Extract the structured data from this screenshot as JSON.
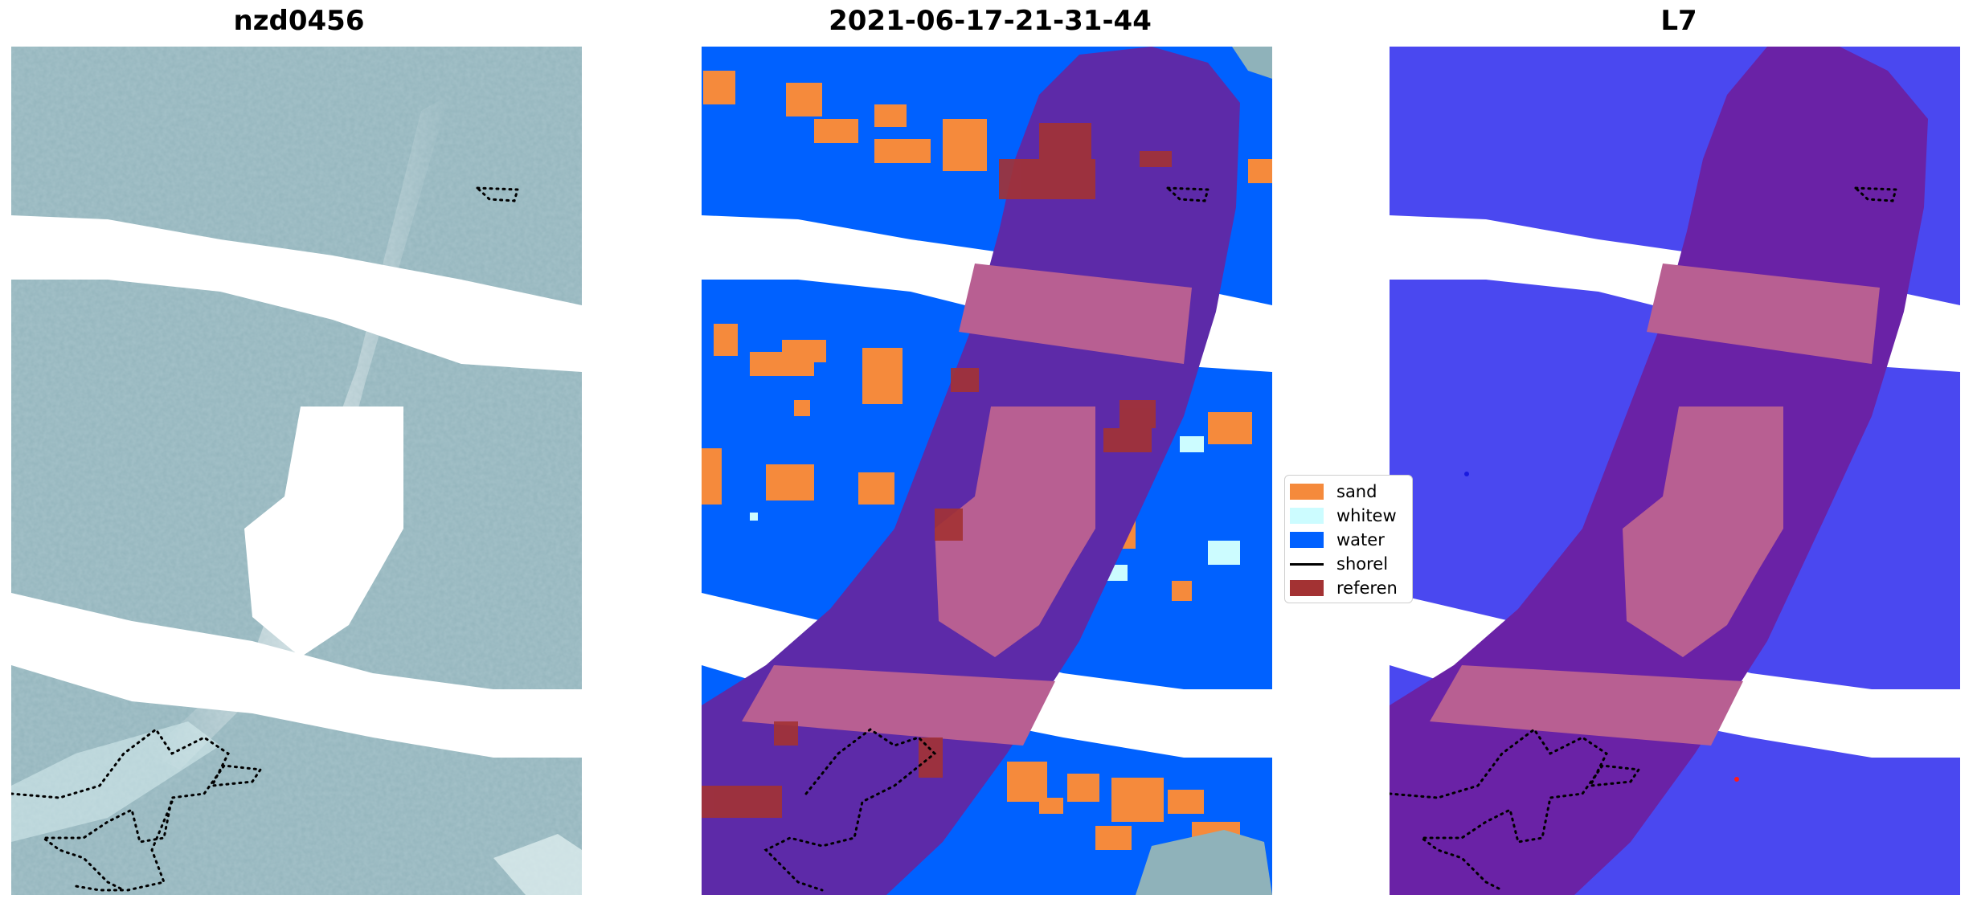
{
  "panels": [
    {
      "title": "nzd0456"
    },
    {
      "title": "2021-06-17-21-31-44"
    },
    {
      "title": "L7"
    }
  ],
  "legend": {
    "items": [
      {
        "label": "sand",
        "color": "#f58a3c",
        "kind": "patch"
      },
      {
        "label": "whitew",
        "color": "#ccfcff",
        "kind": "patch"
      },
      {
        "label": "water",
        "color": "#0061ff",
        "kind": "patch"
      },
      {
        "label": "shorel",
        "color": "#000000",
        "kind": "line"
      },
      {
        "label": "referen",
        "color": "#a33233",
        "kind": "patch"
      }
    ]
  },
  "colors": {
    "rgb_base": "#8fb2ba",
    "water": "#0061ff",
    "sand": "#f58a3c",
    "whitewater": "#ccfcff",
    "reference": "#a33233",
    "overlay_dark": "#5d2aa8",
    "overlay_light": "#b85f92",
    "probability_water": "#4a48f0",
    "probability_overlay": "#6a22a6"
  }
}
